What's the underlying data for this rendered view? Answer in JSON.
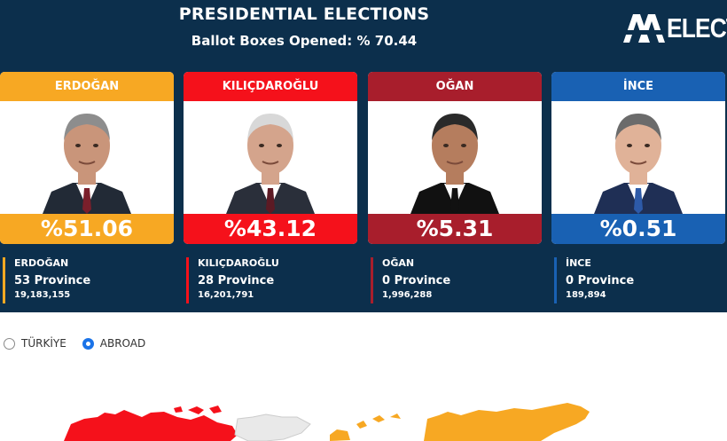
{
  "header": {
    "title": "PRESIDENTIAL ELECTIONS",
    "subtitle": "Ballot Boxes Opened: % 70.44",
    "logo_text": "ELECTI",
    "background": "#0c2f4c"
  },
  "candidates": [
    {
      "name": "ERDOĞAN",
      "percent": "%51.06",
      "stat_name": "ERDOĞAN",
      "provinces": "53 Province",
      "votes": "19,183,155",
      "color": "#f7a823",
      "suit": "#222a36",
      "tie": "#7a1f2b",
      "skin": "#c9957a",
      "hair": "#8d8d8d"
    },
    {
      "name": "KILIÇDAROĞLU",
      "percent": "%43.12",
      "stat_name": "KILIÇDAROĞLU",
      "provinces": "28 Province",
      "votes": "16,201,791",
      "color": "#f5111b",
      "suit": "#2a2f3a",
      "tie": "#5c1a24",
      "skin": "#d4a48c",
      "hair": "#d8d8d8"
    },
    {
      "name": "OĞAN",
      "percent": "%5.31",
      "stat_name": "OĞAN",
      "provinces": "0 Province",
      "votes": "1,996,288",
      "color": "#a81e2c",
      "suit": "#111111",
      "tie": "#111111",
      "skin": "#b57d5e",
      "hair": "#2a2a2a"
    },
    {
      "name": "İNCE",
      "percent": "%0.51",
      "stat_name": "İNCE",
      "provinces": "0 Province",
      "votes": "189,894",
      "color": "#1961b3",
      "suit": "#1f2f55",
      "tie": "#2d5aa8",
      "skin": "#e0b298",
      "hair": "#6b6b6b"
    }
  ],
  "region_selector": {
    "options": [
      {
        "label": "TÜRKİYE",
        "selected": false
      },
      {
        "label": "ABROAD",
        "selected": true
      }
    ],
    "accent": "#1a73e8"
  },
  "map_colors": {
    "erdogan": "#f7a823",
    "kilicdaroglu": "#f5111b",
    "neutral": "#e9e9e9"
  }
}
